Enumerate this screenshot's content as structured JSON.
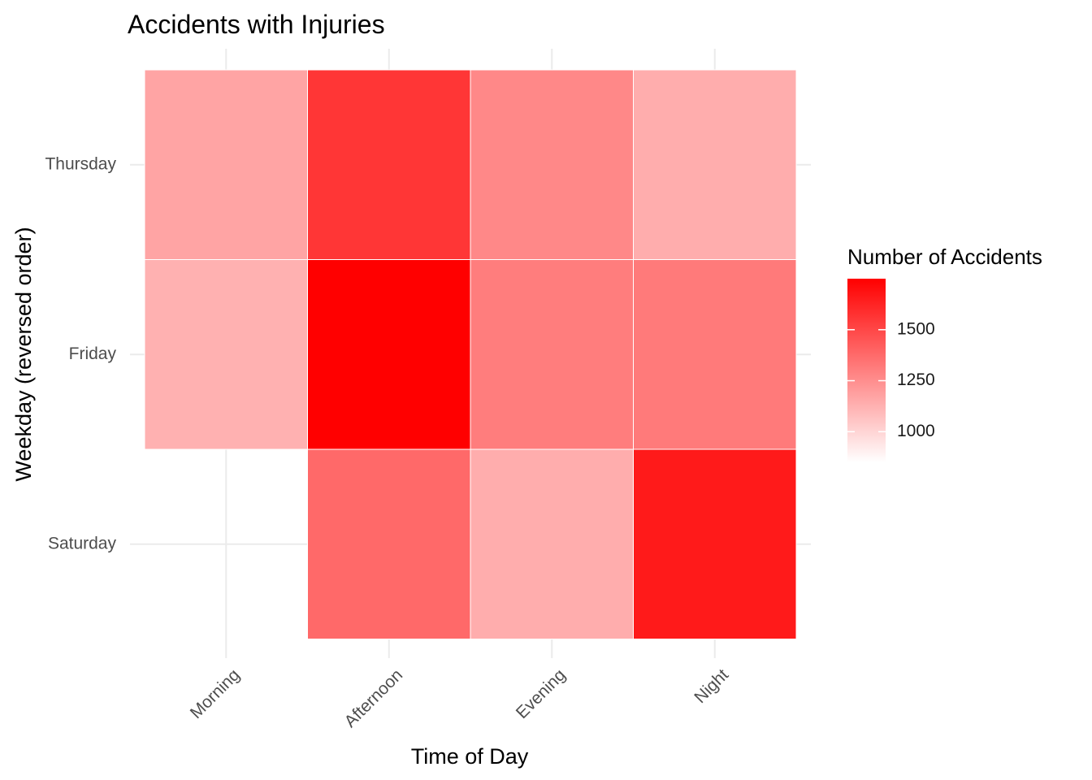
{
  "chart_data": {
    "type": "heatmap",
    "title": "Accidents with Injuries",
    "xlabel": "Time of Day",
    "ylabel": "Weekday (reversed order)",
    "x_categories": [
      "Morning",
      "Afternoon",
      "Evening",
      "Night"
    ],
    "y_categories": [
      "Thursday",
      "Friday",
      "Saturday"
    ],
    "cells": [
      {
        "x": "Morning",
        "y": "Thursday",
        "value": 1170
      },
      {
        "x": "Afternoon",
        "y": "Thursday",
        "value": 1560
      },
      {
        "x": "Evening",
        "y": "Thursday",
        "value": 1270
      },
      {
        "x": "Night",
        "y": "Thursday",
        "value": 1140
      },
      {
        "x": "Morning",
        "y": "Friday",
        "value": 1125
      },
      {
        "x": "Afternoon",
        "y": "Friday",
        "value": 1750
      },
      {
        "x": "Evening",
        "y": "Friday",
        "value": 1310
      },
      {
        "x": "Night",
        "y": "Friday",
        "value": 1320
      },
      {
        "x": "Afternoon",
        "y": "Saturday",
        "value": 1380
      },
      {
        "x": "Evening",
        "y": "Saturday",
        "value": 1140
      },
      {
        "x": "Night",
        "y": "Saturday",
        "value": 1660
      }
    ],
    "missing_cells": [
      {
        "x": "Morning",
        "y": "Saturday"
      }
    ],
    "legend": {
      "title": "Number of Accidents",
      "ticks": [
        1000,
        1250,
        1500
      ],
      "tick_labels": [
        "1000",
        "1250",
        "1500"
      ],
      "range": [
        850,
        1750
      ],
      "low_color": "#ffffff",
      "high_color": "#ff0000",
      "position": "right"
    },
    "grid": true
  }
}
